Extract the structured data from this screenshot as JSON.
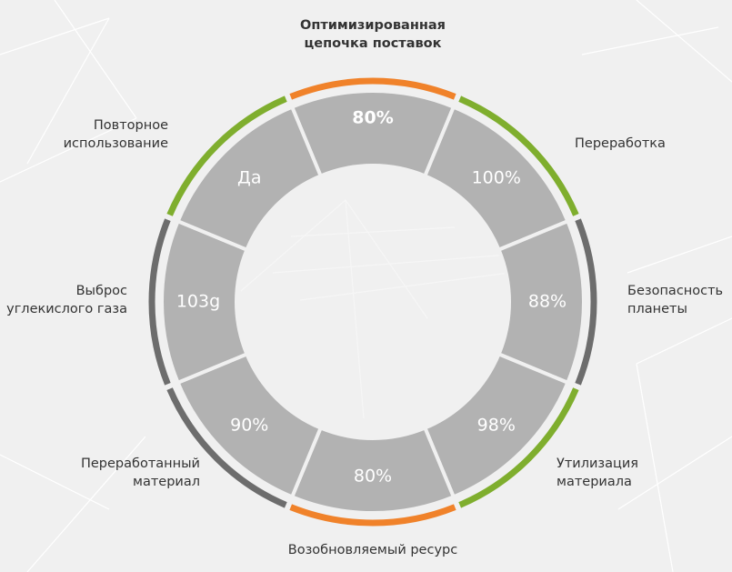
{
  "segments": [
    {
      "value": "80%",
      "label": [
        "Оптимизированная",
        "цепочка поставок"
      ],
      "accent": "#f0822a"
    },
    {
      "value": "100%",
      "label": [
        "Переработка"
      ],
      "accent": "#7fae2e"
    },
    {
      "value": "88%",
      "label": [
        "Безопасность",
        "планеты"
      ],
      "accent": "#6d6d6d"
    },
    {
      "value": "98%",
      "label": [
        "Утилизация",
        "материала"
      ],
      "accent": "#7fae2e"
    },
    {
      "value": "80%",
      "label": [
        "Возобновляемый ресурс"
      ],
      "accent": "#f0822a"
    },
    {
      "value": "90%",
      "label": [
        "Переработанный",
        "материал"
      ],
      "accent": "#6d6d6d"
    },
    {
      "value": "103g",
      "label": [
        "Выброс",
        "углекислого газа"
      ],
      "accent": "#6d6d6d"
    },
    {
      "value": "Да",
      "label": [
        "Повторное",
        "использование"
      ],
      "accent": "#7fae2e"
    }
  ]
}
